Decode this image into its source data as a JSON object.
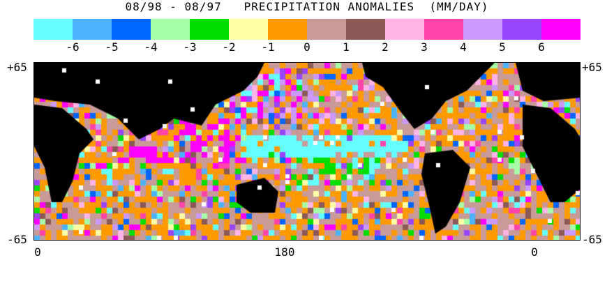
{
  "title": "08/98 - 08/97   PRECIPITATION ANOMALIES  (MM/DAY)",
  "legend": {
    "colors": [
      "#66ffff",
      "#4db3ff",
      "#0066ff",
      "#a6ffa6",
      "#00dd00",
      "#ffffa6",
      "#ff9900",
      "#c89a98",
      "#8c5a56",
      "#ffb3e6",
      "#ff44aa",
      "#cc99ff",
      "#9944ff",
      "#ff00ff"
    ],
    "tick_labels": [
      "-6",
      "-5",
      "-4",
      "-3",
      "-2",
      "-1",
      "0",
      "1",
      "2",
      "3",
      "4",
      "5",
      "6"
    ]
  },
  "axes": {
    "lat_top": "+65",
    "lat_bottom": "-65",
    "lon_labels": [
      "0",
      "180",
      "0"
    ]
  },
  "map_data": {
    "type": "global gridded precipitation anomaly map",
    "period": "08/98 - 08/97",
    "units": "MM/DAY",
    "land_color": "#000000",
    "no_data_color": "#ffffff",
    "latitude_range": [
      -65,
      65
    ],
    "features": [
      {
        "region": "Central Pacific equatorial band",
        "anomaly": "strong negative (-6)"
      },
      {
        "region": "Western Pacific / Maritime Continent",
        "anomaly": "strong positive (+6)"
      },
      {
        "region": "Indian Ocean west of Sumatra",
        "anomaly": "strong positive (+6)"
      },
      {
        "region": "North-central Pacific",
        "anomaly": "mixed positive (+4 to +6)"
      },
      {
        "region": "South Pacific convergence zone",
        "anomaly": "negative (-3 to -6)"
      },
      {
        "region": "Southern Ocean",
        "anomaly": "mixed (-6 to +6)"
      }
    ]
  }
}
